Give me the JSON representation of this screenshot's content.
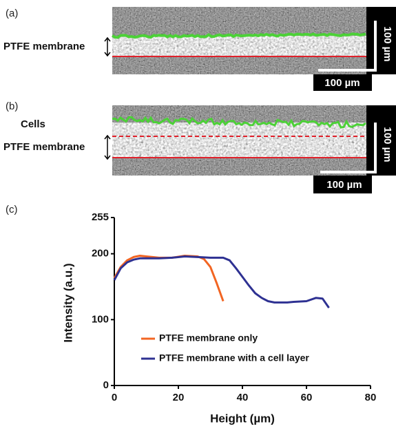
{
  "panels": [
    {
      "label": "(a)",
      "annotations": [
        "PTFE membrane"
      ],
      "scale_x": "100 µm",
      "scale_y": "100 µm"
    },
    {
      "label": "(b)",
      "annotations": [
        "Cells",
        "PTFE membrane"
      ],
      "scale_x": "100 µm",
      "scale_y": "100 µm"
    }
  ],
  "chart_panel_label": "(c)",
  "chart_data": {
    "type": "line",
    "xlabel": "Height (µm)",
    "ylabel": "Intensity (a.u.)",
    "xlim": [
      0,
      80
    ],
    "ylim": [
      0,
      255
    ],
    "xticks": [
      0,
      20,
      40,
      60,
      80
    ],
    "yticks": [
      0,
      100,
      200,
      255
    ],
    "legend": "lower left",
    "series": [
      {
        "name": "PTFE membrane only",
        "color": "#f26522",
        "x": [
          0,
          2,
          4,
          6,
          8,
          10,
          14,
          18,
          22,
          26,
          28,
          30,
          32,
          34
        ],
        "values": [
          163,
          180,
          190,
          195,
          197,
          196,
          194,
          194,
          197,
          196,
          192,
          180,
          155,
          128
        ]
      },
      {
        "name": "PTFE membrane with a cell layer",
        "color": "#2e3192",
        "x": [
          0,
          2,
          4,
          6,
          8,
          10,
          14,
          18,
          22,
          26,
          30,
          34,
          36,
          38,
          40,
          42,
          44,
          46,
          48,
          50,
          54,
          56,
          60,
          63,
          65,
          67
        ],
        "values": [
          160,
          178,
          187,
          191,
          193,
          193,
          193,
          194,
          196,
          195,
          194,
          194,
          190,
          178,
          165,
          152,
          140,
          133,
          128,
          126,
          126,
          127,
          128,
          133,
          132,
          118
        ]
      }
    ]
  }
}
